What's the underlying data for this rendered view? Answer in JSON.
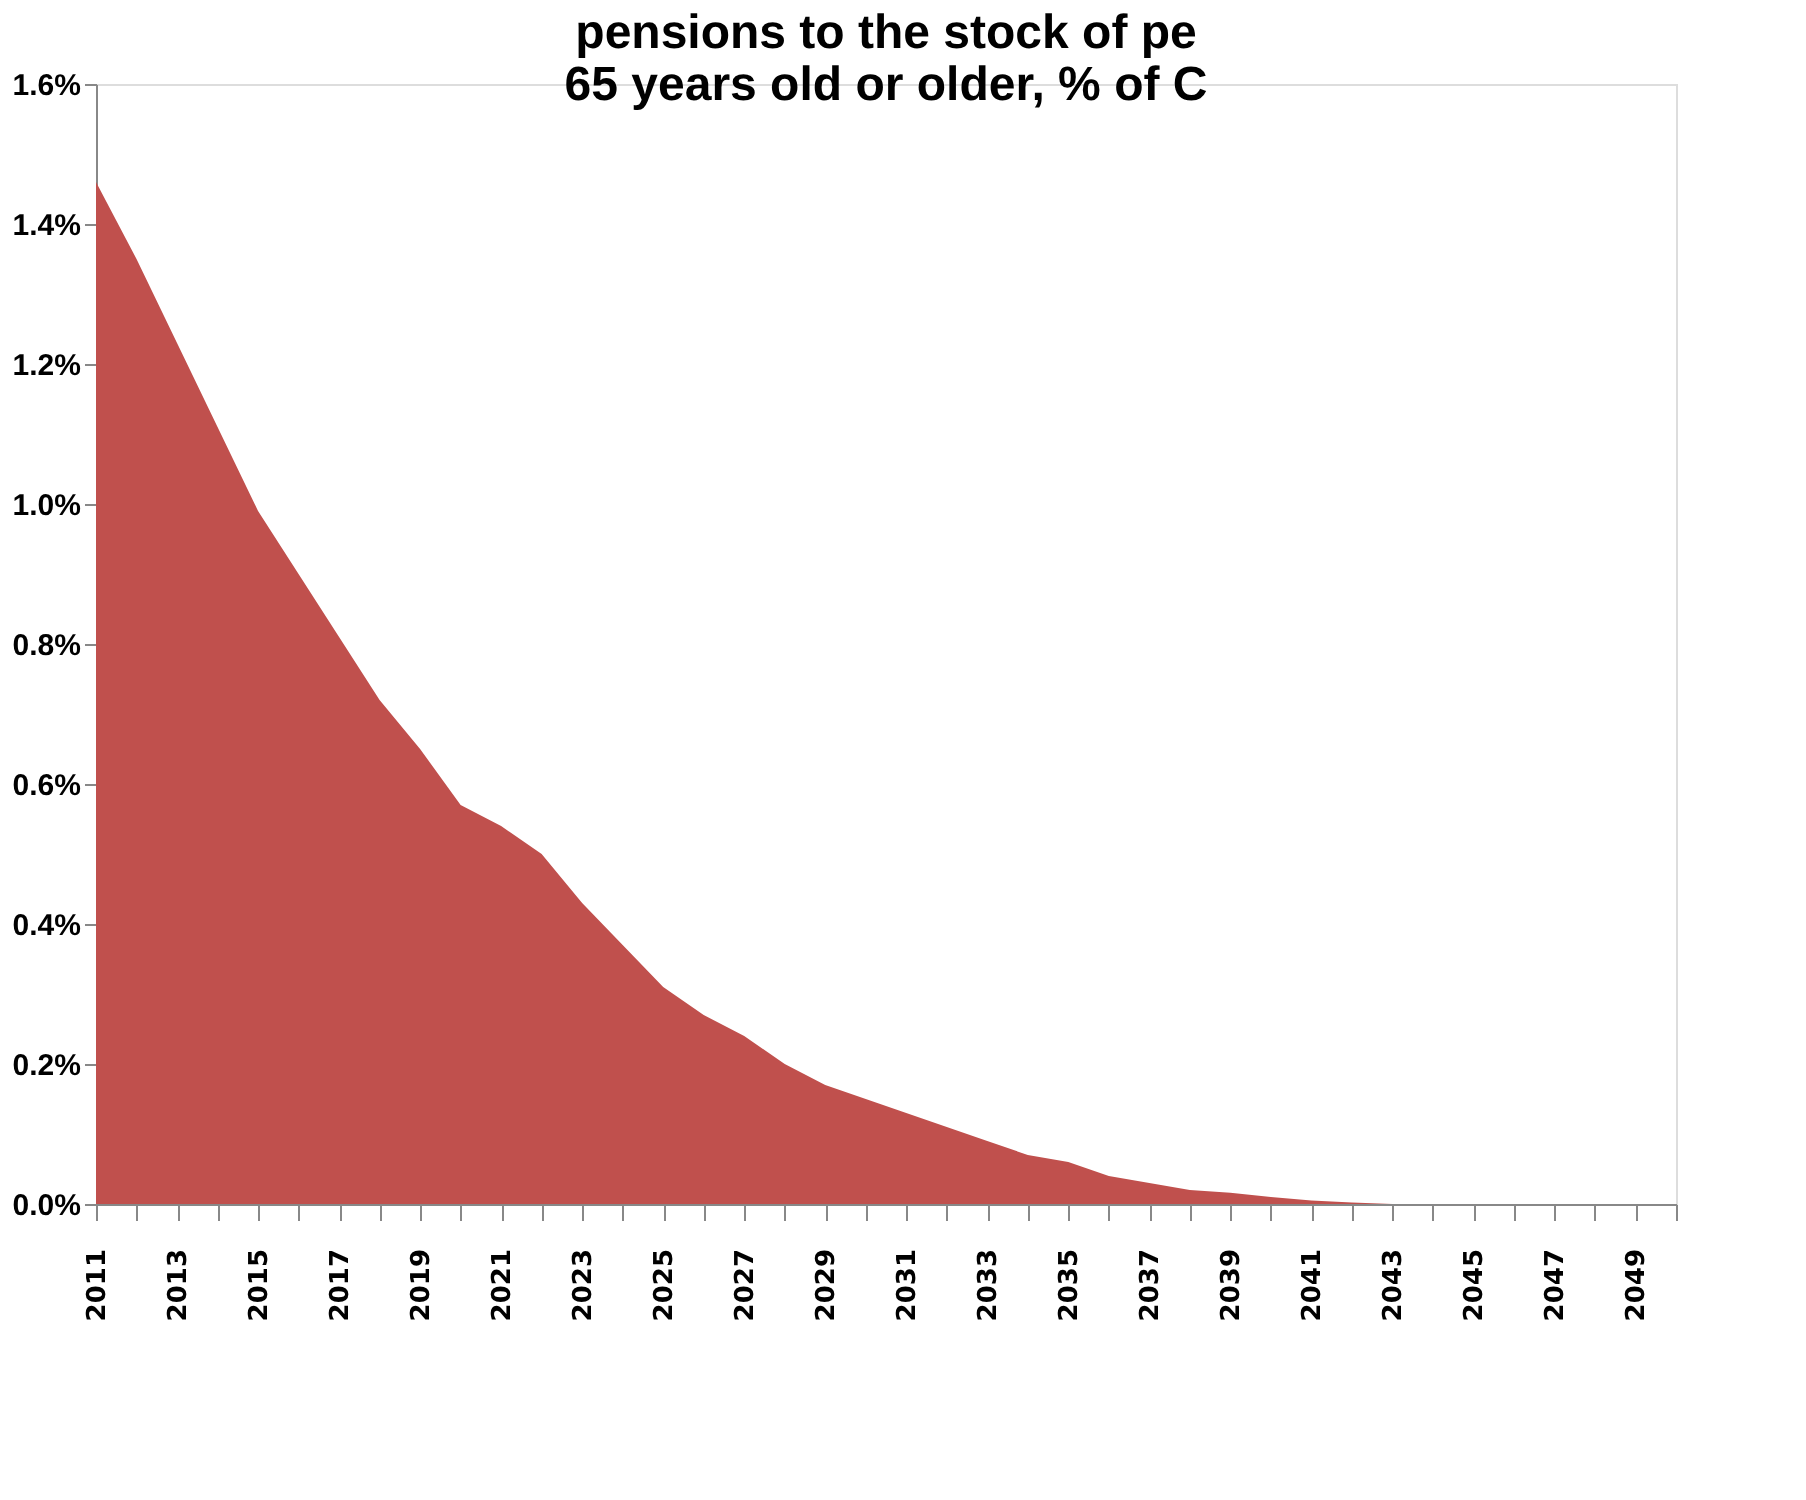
{
  "chart_data": {
    "type": "area",
    "title": "pensions to the stock of pe\n65 years old or older, % of C",
    "categories": [
      "2011",
      null,
      "2013",
      null,
      "2015",
      null,
      "2017",
      null,
      "2019",
      null,
      "2021",
      null,
      "2023",
      null,
      "2025",
      null,
      "2027",
      null,
      "2029",
      null,
      "2031",
      null,
      "2033",
      null,
      "2035",
      null,
      "2037",
      null,
      "2039",
      null,
      "2041",
      null,
      "2043",
      null,
      "2045",
      null,
      "2047",
      null,
      "2049",
      null
    ],
    "series": [
      {
        "color": "#c0504d",
        "values": [
          1.46,
          1.35,
          1.23,
          1.11,
          0.99,
          0.9,
          0.81,
          0.72,
          0.65,
          0.57,
          0.54,
          0.5,
          0.43,
          0.37,
          0.31,
          0.27,
          0.24,
          0.2,
          0.17,
          0.15,
          0.13,
          0.11,
          0.09,
          0.07,
          0.06,
          0.04,
          0.03,
          0.02,
          0.016,
          0.01,
          0.005,
          0.002,
          0,
          0,
          0,
          0,
          0,
          0,
          0,
          0
        ]
      }
    ],
    "ylim": [
      0,
      1.6
    ],
    "yticks": [
      {
        "value": 0,
        "label": "0.0%"
      },
      {
        "value": 0.2,
        "label": "0.2%"
      },
      {
        "value": 0.4,
        "label": "0.4%"
      },
      {
        "value": 0.6,
        "label": "0.6%"
      },
      {
        "value": 0.8,
        "label": "0.8%"
      },
      {
        "value": 1.0,
        "label": "1.0%"
      },
      {
        "value": 1.2,
        "label": "1.2%"
      },
      {
        "value": 1.4,
        "label": "1.4%"
      },
      {
        "value": 1.6,
        "label": "1.6%"
      }
    ],
    "grid": false
  }
}
